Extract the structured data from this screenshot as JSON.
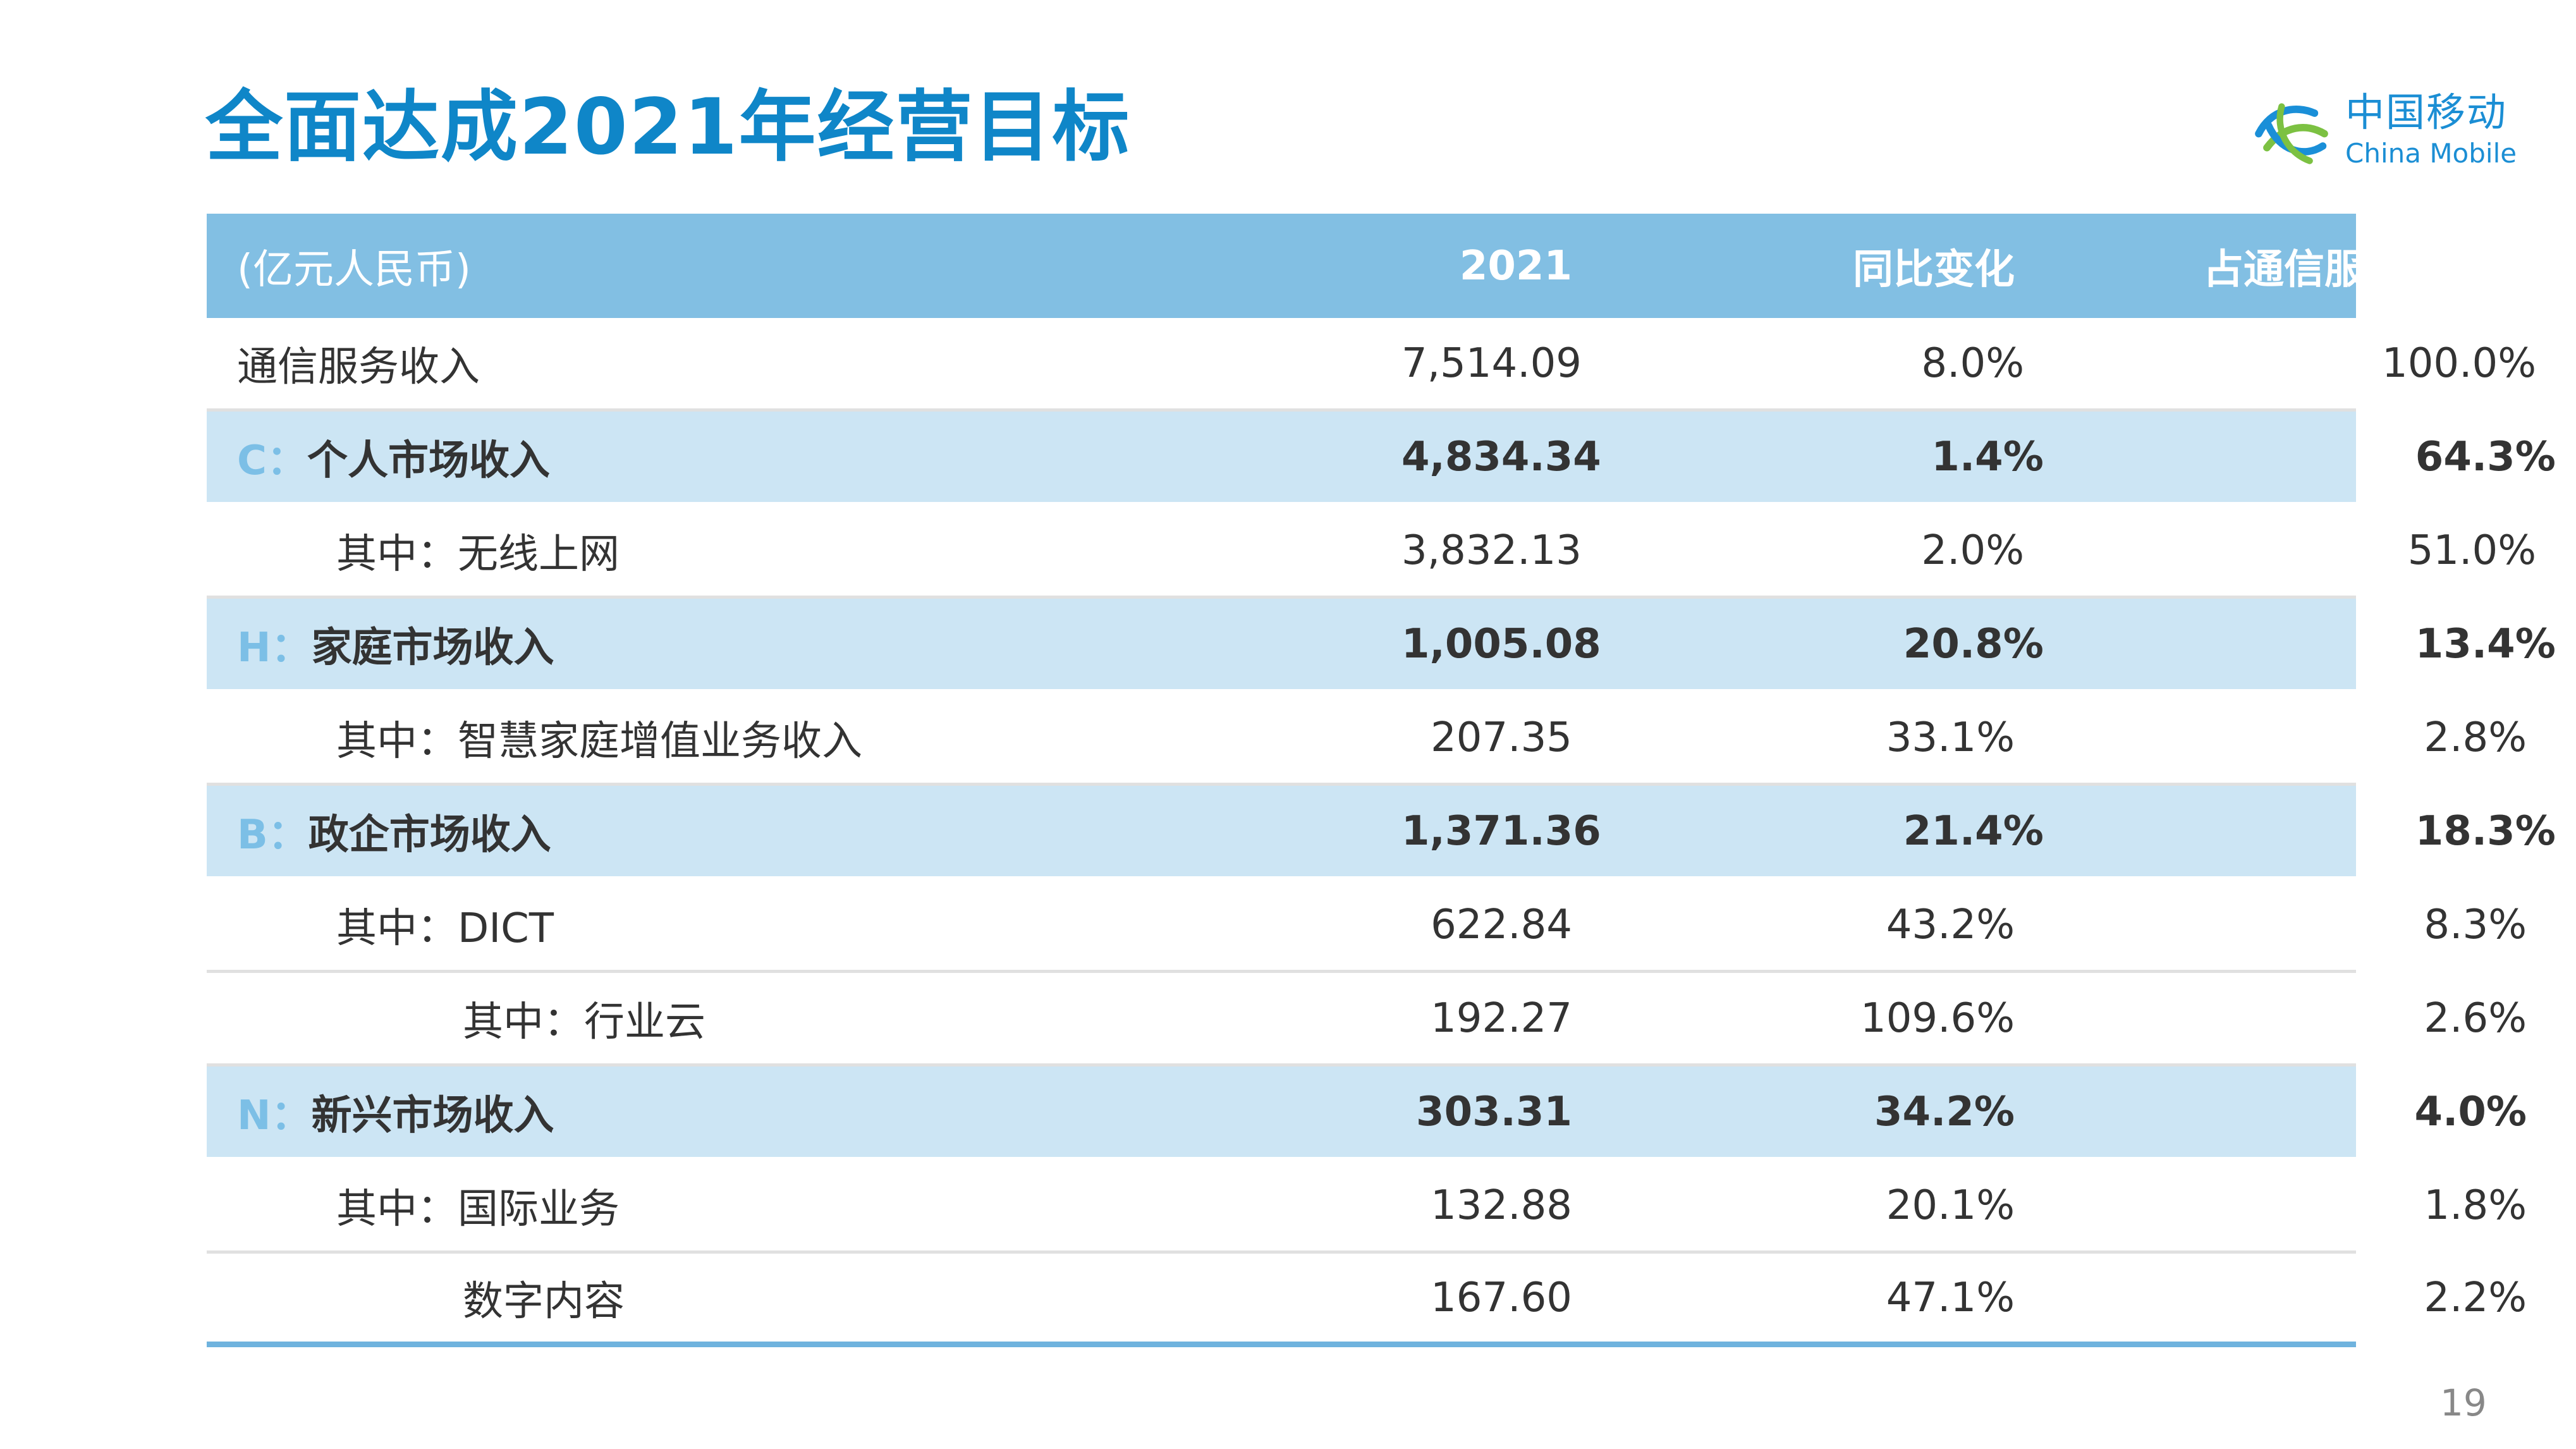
{
  "title": "全面达成2021年经营目标",
  "logo": {
    "cn": "中国移动",
    "en": "China Mobile"
  },
  "table": {
    "headers": [
      "(亿元人民币)",
      "2021",
      "同比变化",
      "占通信服务收入比"
    ],
    "rows": [
      {
        "letter": "",
        "label": "通信服务收入",
        "value": "7,514.09",
        "yoy": "8.0%",
        "share": "100.0%"
      },
      {
        "letter": "C：",
        "label": "个人市场收入",
        "value": "4,834.34",
        "yoy": "1.4%",
        "share": "64.3%"
      },
      {
        "letter": "",
        "label": "其中：无线上网",
        "value": "3,832.13",
        "yoy": "2.0%",
        "share": "51.0%"
      },
      {
        "letter": "H：",
        "label": "家庭市场收入",
        "value": "1,005.08",
        "yoy": "20.8%",
        "share": "13.4%"
      },
      {
        "letter": "",
        "label": "其中：智慧家庭增值业务收入",
        "value": "207.35",
        "yoy": "33.1%",
        "share": "2.8%"
      },
      {
        "letter": "B：",
        "label": "政企市场收入",
        "value": "1,371.36",
        "yoy": "21.4%",
        "share": "18.3%"
      },
      {
        "letter": "",
        "label": "其中：DICT",
        "value": "622.84",
        "yoy": "43.2%",
        "share": "8.3%"
      },
      {
        "letter": "",
        "label": "其中：行业云",
        "value": "192.27",
        "yoy": "109.6%",
        "share": "2.6%"
      },
      {
        "letter": "N：",
        "label": "新兴市场收入",
        "value": "303.31",
        "yoy": "34.2%",
        "share": "4.0%"
      },
      {
        "letter": "",
        "label": "其中：国际业务",
        "value": "132.88",
        "yoy": "20.1%",
        "share": "1.8%"
      },
      {
        "letter": "",
        "label": "数字内容",
        "value": "167.60",
        "yoy": "47.1%",
        "share": "2.2%"
      }
    ]
  },
  "page_number": "19",
  "colors": {
    "title": "#0f86c8",
    "header_bg": "#82bfe3",
    "segment_bg": "#cce5f4",
    "segment_letter": "#7cbfe6"
  }
}
